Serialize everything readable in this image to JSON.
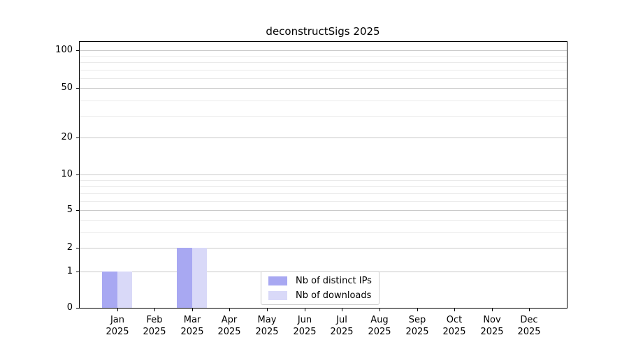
{
  "chart_data": {
    "type": "bar",
    "title": "deconstructSigs 2025",
    "categories": [
      "Jan",
      "Feb",
      "Mar",
      "Apr",
      "May",
      "Jun",
      "Jul",
      "Aug",
      "Sep",
      "Oct",
      "Nov",
      "Dec"
    ],
    "category_year": "2025",
    "series": [
      {
        "name": "Nb of distinct IPs",
        "color": "#a8a8f2",
        "values": [
          1,
          0,
          2,
          0,
          0,
          0,
          0,
          0,
          0,
          0,
          0,
          0
        ]
      },
      {
        "name": "Nb of downloads",
        "color": "#d9d9f8",
        "values": [
          1,
          0,
          2,
          0,
          0,
          0,
          0,
          0,
          0,
          0,
          0,
          0
        ]
      }
    ],
    "xlabel": "",
    "ylabel": "",
    "y_axis": {
      "scale": "log1p",
      "major_ticks": [
        0,
        1,
        2,
        5,
        10,
        20,
        50,
        100
      ],
      "minor_gridlines": [
        3,
        4,
        6,
        7,
        8,
        9,
        30,
        40,
        60,
        70,
        80,
        90
      ],
      "ylim": [
        0,
        115
      ]
    },
    "grid": "on",
    "legend_position": "lower center inside plot",
    "colors": {
      "major_grid": "#c9c9c9",
      "minor_grid": "#eaeaea",
      "axis": "#000000",
      "background": "#ffffff"
    }
  }
}
